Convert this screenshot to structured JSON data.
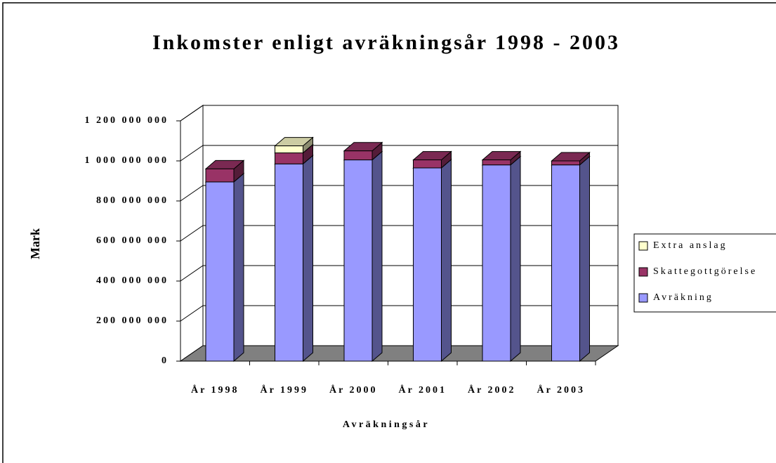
{
  "chart_data": {
    "type": "bar3d_stacked",
    "title": "Inkomster enligt avräkningsår 1998 - 2003",
    "x_label": "Avräkningsår",
    "y_label": "Mark",
    "categories": [
      "År 1998",
      "År 1999",
      "År 2000",
      "År 2001",
      "År 2002",
      "År 2003"
    ],
    "series": [
      {
        "name": "Avräkning",
        "color": "#9999ff",
        "values": [
          895000000,
          985000000,
          1005000000,
          965000000,
          980000000,
          980000000
        ]
      },
      {
        "name": "Skattegottgörelse",
        "color": "#993366",
        "values": [
          65000000,
          55000000,
          45000000,
          40000000,
          25000000,
          20000000
        ]
      },
      {
        "name": "Extra anslag",
        "color": "#ffffcc",
        "values": [
          0,
          35000000,
          0,
          0,
          0,
          0
        ]
      }
    ],
    "ylim": [
      0,
      1200000000
    ],
    "yticks": [
      0,
      {
        "value": 200000000,
        "label": "200 000 000"
      },
      {
        "value": 400000000,
        "label": "400 000 000"
      },
      {
        "value": 600000000,
        "label": "600 000 000"
      },
      {
        "value": 800000000,
        "label": "800 000 000"
      },
      {
        "value": 1000000000,
        "label": "1 000 000 000"
      },
      {
        "value": 1200000000,
        "label": "1 200 000 000"
      }
    ],
    "grid": true,
    "legend": "right"
  }
}
